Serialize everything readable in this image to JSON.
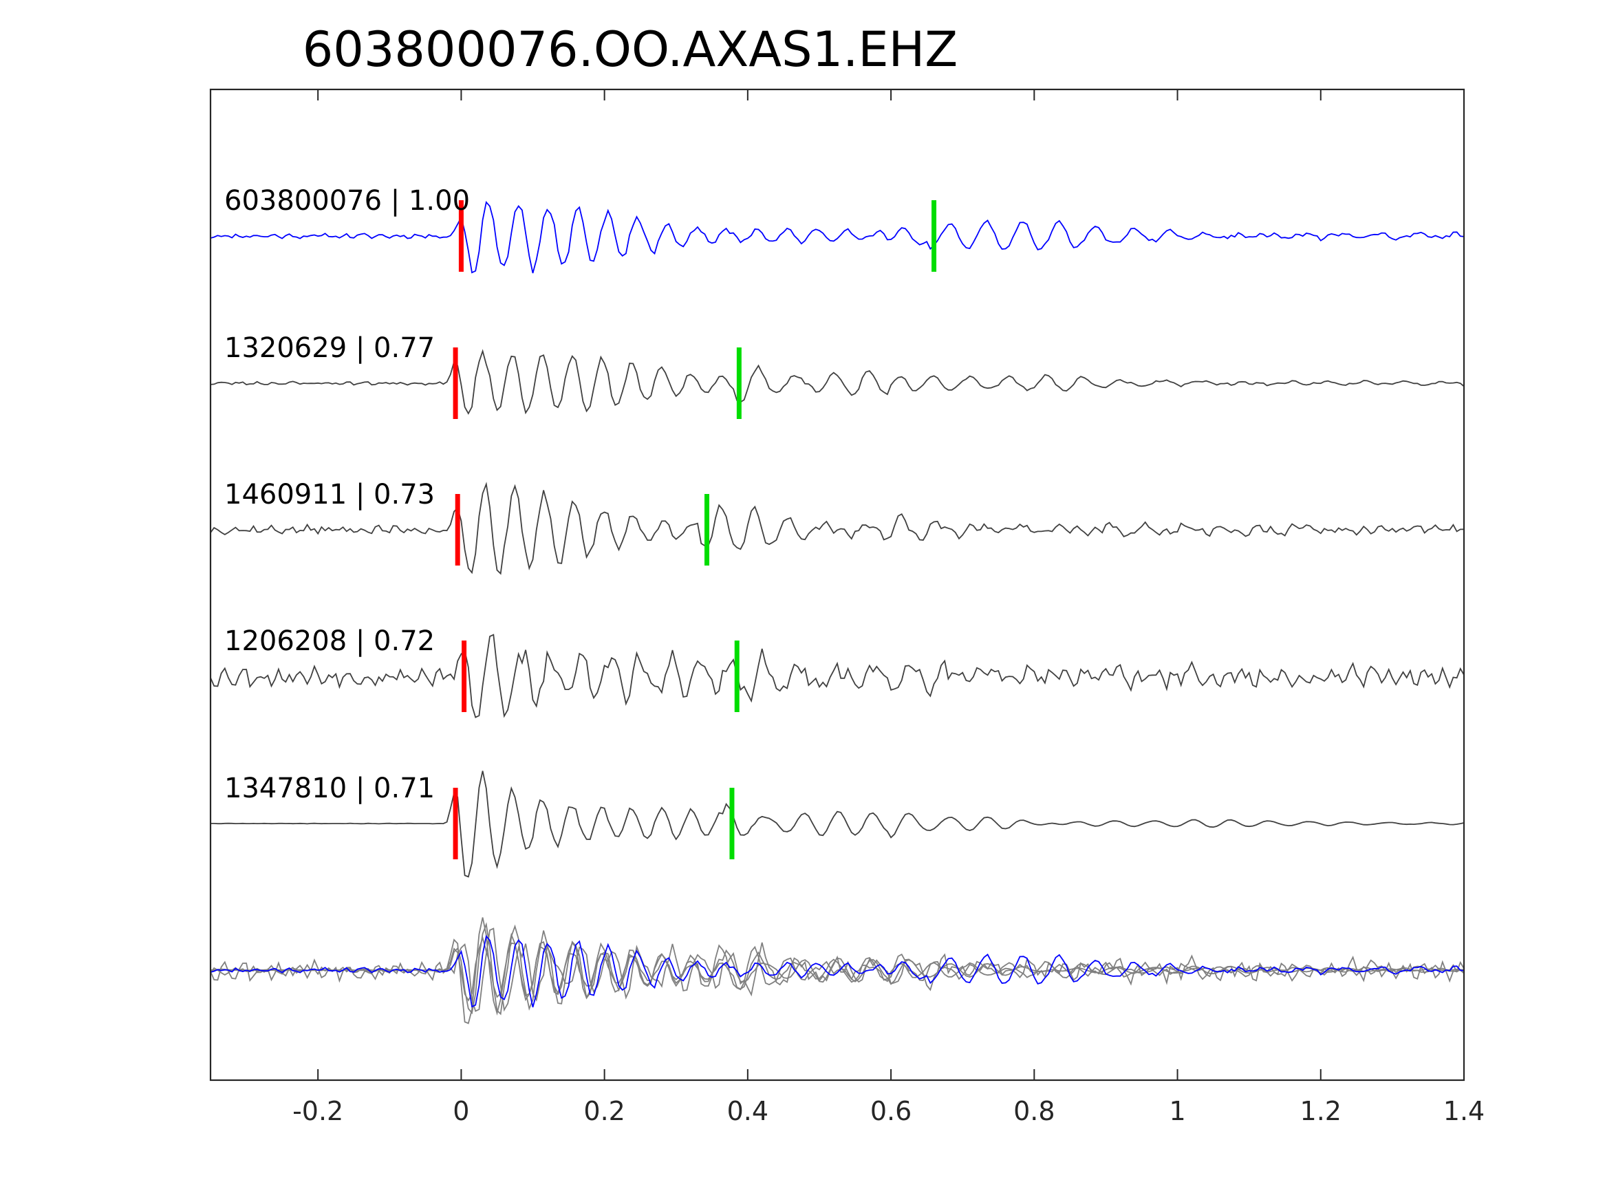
{
  "chart_data": {
    "type": "line",
    "title": "603800076.OO.AXAS1.EHZ",
    "xlabel": "",
    "ylabel": "",
    "xlim": [
      -0.35,
      1.4
    ],
    "xticks": [
      -0.2,
      0,
      0.2,
      0.4,
      0.6,
      0.8,
      1,
      1.2,
      1.4
    ],
    "xtick_labels": [
      "-0.2",
      "0",
      "0.2",
      "0.4",
      "0.6",
      "0.8",
      "1",
      "1.2",
      "1.4"
    ],
    "grid": false,
    "colors": {
      "reference": "#0000ff",
      "correlated": "#404040",
      "stack_gray": "#808080",
      "p_pick": "#ff0000",
      "s_pick": "#00dd00"
    },
    "traces": [
      {
        "label": "603800076 | 1.00",
        "id": "603800076",
        "cc": 1.0,
        "color": "blue",
        "p_pick": 0.0,
        "s_pick": 0.66,
        "noise": 0.1,
        "amp": 1.0,
        "seed": 11
      },
      {
        "label": "1320629 | 0.77",
        "id": "1320629",
        "cc": 0.77,
        "color": "dark",
        "p_pick": -0.008,
        "s_pick": 0.388,
        "noise": 0.07,
        "amp": 1.0,
        "seed": 23
      },
      {
        "label": "1460911 | 0.73",
        "id": "1460911",
        "cc": 0.73,
        "color": "dark",
        "p_pick": -0.005,
        "s_pick": 0.343,
        "noise": 0.18,
        "amp": 1.0,
        "seed": 37
      },
      {
        "label": "1206208 | 0.72",
        "id": "1206208",
        "cc": 0.72,
        "color": "dark",
        "p_pick": 0.004,
        "s_pick": 0.385,
        "noise": 0.42,
        "amp": 1.0,
        "seed": 53
      },
      {
        "label": "1347810 | 0.71",
        "id": "1347810",
        "cc": 0.71,
        "color": "dark",
        "p_pick": -0.008,
        "s_pick": 0.378,
        "noise": 0.01,
        "amp": 1.0,
        "seed": 71
      }
    ]
  }
}
